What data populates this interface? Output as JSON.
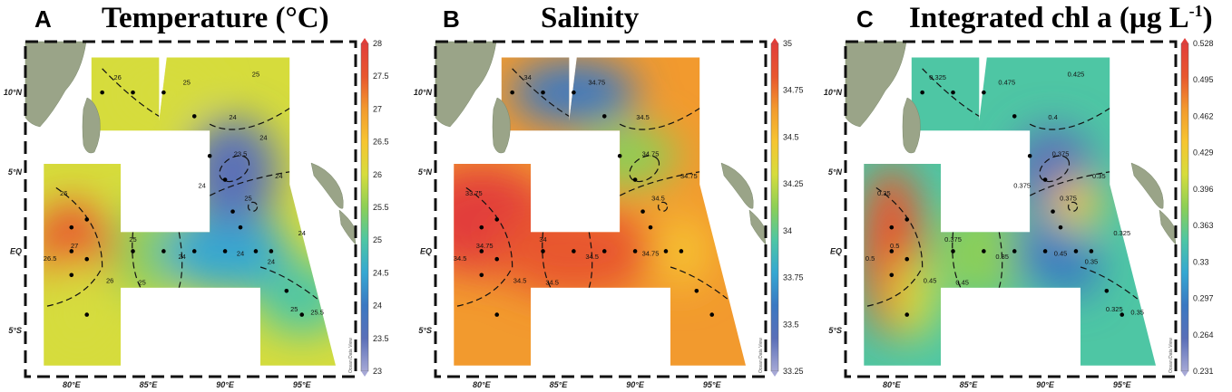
{
  "chart_data": [
    {
      "type": "heatmap",
      "letter": "A",
      "title": "Temperature (°C)",
      "colorbar": {
        "min": 23,
        "max": 28,
        "ticks": [
          "28",
          "27.5",
          "27",
          "26.5",
          "26",
          "25.5",
          "25",
          "24.5",
          "24",
          "23.5",
          "23"
        ],
        "palette": "odv-rainbow"
      },
      "xticks": [
        "80°E",
        "85°E",
        "90°E",
        "95°E"
      ],
      "yticks": [
        "10°N",
        "5°N",
        "EQ",
        "5°S"
      ],
      "stations": [
        [
          82,
          10
        ],
        [
          84,
          10
        ],
        [
          86,
          10
        ],
        [
          88,
          8.5
        ],
        [
          89,
          6
        ],
        [
          90,
          4.5
        ],
        [
          90.5,
          2.5
        ],
        [
          91,
          1.5
        ],
        [
          80,
          1.5
        ],
        [
          81,
          2
        ],
        [
          80,
          0
        ],
        [
          81,
          -0.5
        ],
        [
          80,
          -1.5
        ],
        [
          84,
          0
        ],
        [
          86,
          0
        ],
        [
          88,
          0
        ],
        [
          90,
          0
        ],
        [
          92,
          0
        ],
        [
          93,
          0
        ],
        [
          94,
          -2.5
        ],
        [
          95,
          -4
        ],
        [
          81,
          -4
        ]
      ],
      "contour_labels": [
        "26",
        "26",
        "25",
        "24",
        "24",
        "23.5",
        "24",
        "25",
        "24",
        "27",
        "26.5",
        "26",
        "25",
        "25",
        "25",
        "24",
        "24",
        "25",
        "25.5",
        "24",
        "24"
      ],
      "watermark": "Ocean Data View"
    },
    {
      "type": "heatmap",
      "letter": "B",
      "title": "Salinity",
      "colorbar": {
        "min": 33.25,
        "max": 35,
        "ticks": [
          "35",
          "34.75",
          "34.5",
          "34.25",
          "34",
          "33.75",
          "33.5",
          "33.25"
        ],
        "palette": "odv-rainbow"
      },
      "xticks": [
        "80°E",
        "85°E",
        "90°E",
        "95°E"
      ],
      "yticks": [
        "10°N",
        "5°N",
        "EQ",
        "5°S"
      ],
      "stations": [
        [
          82,
          10
        ],
        [
          84,
          10
        ],
        [
          86,
          10
        ],
        [
          88,
          8.5
        ],
        [
          89,
          6
        ],
        [
          90,
          4.5
        ],
        [
          90.5,
          2.5
        ],
        [
          91,
          1.5
        ],
        [
          80,
          1.5
        ],
        [
          81,
          2
        ],
        [
          80,
          0
        ],
        [
          81,
          -0.5
        ],
        [
          80,
          -1.5
        ],
        [
          84,
          0
        ],
        [
          86,
          0
        ],
        [
          88,
          0
        ],
        [
          90,
          0
        ],
        [
          92,
          0
        ],
        [
          93,
          0
        ],
        [
          94,
          -2.5
        ],
        [
          95,
          -4
        ],
        [
          81,
          -4
        ]
      ],
      "contour_labels": [
        "33.75",
        "34",
        "34",
        "34.5",
        "34.5",
        "34.75",
        "34.75",
        "34.5",
        "34.75",
        "34.75",
        "34.5",
        "34.5",
        "34.5",
        "34.75"
      ],
      "watermark": "Ocean Data View"
    },
    {
      "type": "heatmap",
      "letter": "C",
      "title": "Integrated chl a (µg L",
      "title_sup": "-1",
      "title_end": ")",
      "colorbar": {
        "min": 0.231,
        "max": 0.528,
        "ticks": [
          "0.528",
          "0.495",
          "0.462",
          "0.429",
          "0.396",
          "0.363",
          "0.33",
          "0.297",
          "0.264",
          "0.231"
        ],
        "palette": "odv-rainbow"
      },
      "xticks": [
        "80°E",
        "85°E",
        "90°E",
        "95°E"
      ],
      "yticks": [
        "10°N",
        "5°N",
        "EQ",
        "5°S"
      ],
      "stations": [
        [
          82,
          10
        ],
        [
          84,
          10
        ],
        [
          86,
          10
        ],
        [
          88,
          8.5
        ],
        [
          89,
          6
        ],
        [
          90,
          4.5
        ],
        [
          90.5,
          2.5
        ],
        [
          91,
          1.5
        ],
        [
          80,
          1.5
        ],
        [
          81,
          2
        ],
        [
          80,
          0
        ],
        [
          81,
          -0.5
        ],
        [
          80,
          -1.5
        ],
        [
          84,
          0
        ],
        [
          86,
          0
        ],
        [
          88,
          0
        ],
        [
          90,
          0
        ],
        [
          92,
          0
        ],
        [
          93,
          0
        ],
        [
          94,
          -2.5
        ],
        [
          95,
          -4
        ],
        [
          81,
          -4
        ]
      ],
      "contour_labels": [
        "0.35",
        "0.325",
        "0.375",
        "0.35",
        "0.4",
        "0.375",
        "0.35",
        "0.375",
        "0.45",
        "0.5",
        "0.5",
        "0.45",
        "0.45",
        "0.475",
        "0.425",
        "0.35",
        "0.325",
        "0.325",
        "0.35",
        "0.375"
      ],
      "watermark": "Ocean Data View"
    }
  ]
}
